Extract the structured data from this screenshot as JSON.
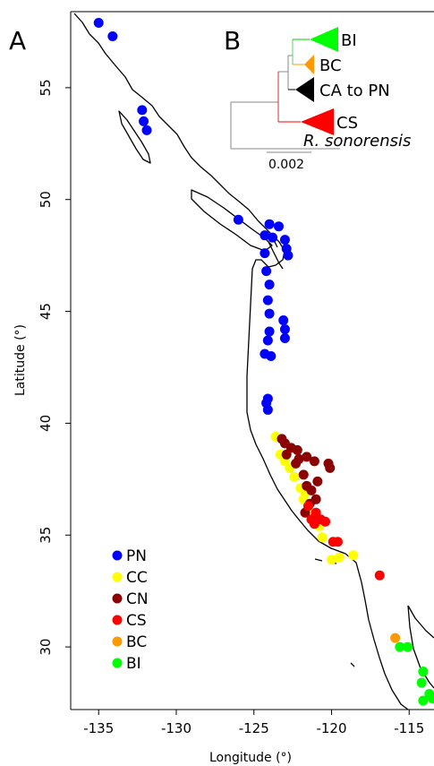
{
  "panels": {
    "a": "A",
    "b": "B"
  },
  "chart_data": {
    "type": "scatter",
    "title": "",
    "xlabel": "Longitude (°)",
    "ylabel": "Latitude (°)",
    "xlim": [
      -136.8,
      -113.4
    ],
    "ylim": [
      27.2,
      58.4
    ],
    "xticks": [
      -135,
      -130,
      -125,
      -120,
      -115
    ],
    "yticks": [
      30,
      35,
      40,
      45,
      50,
      55
    ],
    "xtick_labels": [
      "-135",
      "-130",
      "-125",
      "-120",
      "-115"
    ],
    "ytick_labels": [
      "30",
      "35",
      "40",
      "45",
      "50",
      "55"
    ],
    "grid": false,
    "legend_position": "bottom-left",
    "series": [
      {
        "name": "PN",
        "color": "#0000ff",
        "points": [
          [
            -135.0,
            57.9
          ],
          [
            -134.1,
            57.3
          ],
          [
            -132.2,
            54.0
          ],
          [
            -132.1,
            53.5
          ],
          [
            -131.9,
            53.1
          ],
          [
            -126.0,
            49.1
          ],
          [
            -124.3,
            48.4
          ],
          [
            -123.8,
            48.3
          ],
          [
            -123.4,
            48.8
          ],
          [
            -123.0,
            48.2
          ],
          [
            -122.9,
            47.8
          ],
          [
            -122.8,
            47.5
          ],
          [
            -124.0,
            48.9
          ],
          [
            -124.3,
            47.6
          ],
          [
            -124.2,
            46.8
          ],
          [
            -124.0,
            46.2
          ],
          [
            -124.1,
            45.5
          ],
          [
            -124.0,
            44.9
          ],
          [
            -124.0,
            44.1
          ],
          [
            -124.1,
            43.7
          ],
          [
            -123.1,
            44.6
          ],
          [
            -123.0,
            44.2
          ],
          [
            -123.0,
            43.8
          ],
          [
            -124.3,
            43.1
          ],
          [
            -123.9,
            43.0
          ],
          [
            -124.1,
            41.1
          ],
          [
            -124.2,
            40.9
          ],
          [
            -124.1,
            40.6
          ]
        ]
      },
      {
        "name": "CC",
        "color": "#ffff00",
        "points": [
          [
            -123.6,
            39.4
          ],
          [
            -123.3,
            38.6
          ],
          [
            -122.7,
            38.0
          ],
          [
            -122.4,
            37.6
          ],
          [
            -122.0,
            37.1
          ],
          [
            -121.8,
            36.6
          ],
          [
            -121.5,
            36.2
          ],
          [
            -121.1,
            35.9
          ],
          [
            -120.8,
            35.4
          ],
          [
            -120.6,
            34.9
          ],
          [
            -120.0,
            33.9
          ],
          [
            -119.5,
            34.0
          ],
          [
            -118.6,
            34.1
          ],
          [
            -123.0,
            38.3
          ],
          [
            -121.7,
            36.9
          ]
        ]
      },
      {
        "name": "CN",
        "color": "#8b0000",
        "points": [
          [
            -123.2,
            39.3
          ],
          [
            -123.0,
            39.1
          ],
          [
            -122.6,
            38.9
          ],
          [
            -122.2,
            38.8
          ],
          [
            -121.6,
            38.5
          ],
          [
            -121.1,
            38.3
          ],
          [
            -120.2,
            38.2
          ],
          [
            -120.1,
            38.0
          ],
          [
            -122.3,
            38.2
          ],
          [
            -121.8,
            37.7
          ],
          [
            -121.6,
            37.2
          ],
          [
            -121.3,
            37.0
          ],
          [
            -121.0,
            36.6
          ],
          [
            -121.4,
            36.4
          ],
          [
            -121.7,
            36.0
          ],
          [
            -120.9,
            37.4
          ],
          [
            -122.1,
            38.4
          ],
          [
            -122.9,
            38.6
          ]
        ]
      },
      {
        "name": "CS",
        "color": "#ff0000",
        "points": [
          [
            -121.5,
            36.3
          ],
          [
            -121.0,
            36.0
          ],
          [
            -121.3,
            35.7
          ],
          [
            -120.7,
            35.7
          ],
          [
            -120.4,
            35.6
          ],
          [
            -121.1,
            35.5
          ],
          [
            -119.9,
            34.7
          ],
          [
            -119.6,
            34.7
          ],
          [
            -116.9,
            33.2
          ]
        ]
      },
      {
        "name": "BC",
        "color": "#ff9900",
        "points": [
          [
            -115.9,
            30.4
          ]
        ]
      },
      {
        "name": "BI",
        "color": "#00ff00",
        "points": [
          [
            -115.6,
            30.0
          ],
          [
            -115.1,
            30.0
          ],
          [
            -114.1,
            28.9
          ],
          [
            -114.2,
            28.4
          ],
          [
            -113.6,
            27.8
          ],
          [
            -113.5,
            27.7
          ],
          [
            -114.1,
            27.6
          ],
          [
            -113.7,
            27.9
          ]
        ]
      }
    ]
  },
  "tree": {
    "clades": [
      {
        "name": "BI",
        "color": "#00ff00",
        "italic": false
      },
      {
        "name": "BC",
        "color": "#ff9900",
        "italic": false
      },
      {
        "name": "CA to PN",
        "color": "#000000",
        "italic": false
      },
      {
        "name": "CS",
        "color": "#ff0000",
        "italic": false
      },
      {
        "name": "R. sonorensis",
        "color": "#000000",
        "italic": true
      }
    ],
    "scale_label": "0.002"
  }
}
